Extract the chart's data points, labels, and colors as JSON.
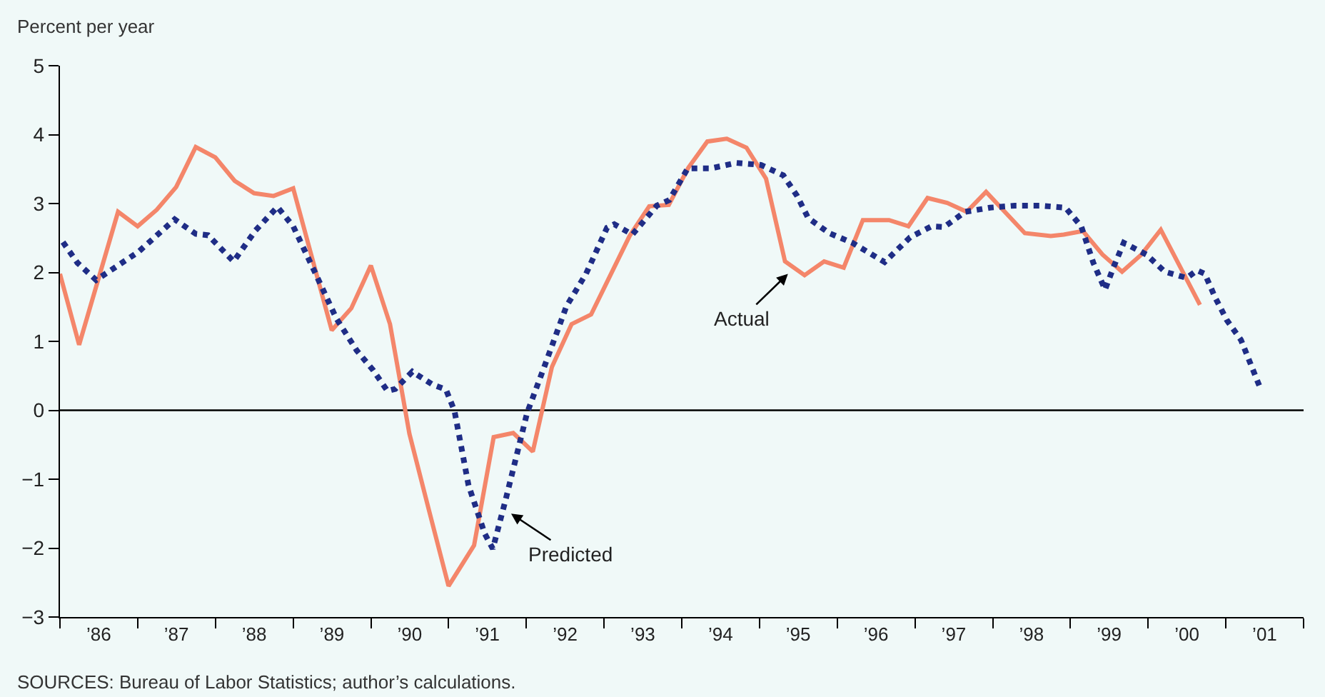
{
  "chart_data": {
    "type": "line",
    "ylabel": "Percent per year",
    "xlim": [
      "1986-01-01",
      "2002-01-01"
    ],
    "xticks": [
      {
        "value": "1986-01-01",
        "label": null
      },
      {
        "value": "1986-07-02",
        "label": "’86"
      },
      {
        "value": "1987-01-01",
        "label": null
      },
      {
        "value": "1987-07-02",
        "label": "’87"
      },
      {
        "value": "1988-01-01",
        "label": null
      },
      {
        "value": "1988-07-02",
        "label": "’88"
      },
      {
        "value": "1989-01-01",
        "label": null
      },
      {
        "value": "1989-07-02",
        "label": "’89"
      },
      {
        "value": "1990-01-01",
        "label": null
      },
      {
        "value": "1990-07-02",
        "label": "’90"
      },
      {
        "value": "1991-01-01",
        "label": null
      },
      {
        "value": "1991-07-02",
        "label": "’91"
      },
      {
        "value": "1992-01-01",
        "label": null
      },
      {
        "value": "1992-07-02",
        "label": "’92"
      },
      {
        "value": "1993-01-01",
        "label": null
      },
      {
        "value": "1993-07-02",
        "label": "’93"
      },
      {
        "value": "1994-01-01",
        "label": null
      },
      {
        "value": "1994-07-02",
        "label": "’94"
      },
      {
        "value": "1995-01-01",
        "label": null
      },
      {
        "value": "1995-07-02",
        "label": "’95"
      },
      {
        "value": "1996-01-01",
        "label": null
      },
      {
        "value": "1996-07-02",
        "label": "’96"
      },
      {
        "value": "1997-01-01",
        "label": null
      },
      {
        "value": "1997-07-02",
        "label": "’97"
      },
      {
        "value": "1998-01-01",
        "label": null
      },
      {
        "value": "1998-07-02",
        "label": "’98"
      },
      {
        "value": "1999-01-01",
        "label": null
      },
      {
        "value": "1999-07-02",
        "label": "’99"
      },
      {
        "value": "2000-01-01",
        "label": null
      },
      {
        "value": "2000-07-02",
        "label": "’00"
      },
      {
        "value": "2001-01-01",
        "label": null
      },
      {
        "value": "2001-07-02",
        "label": "’01"
      },
      {
        "value": "2002-01-01",
        "label": null
      }
    ],
    "ylim": [
      -3,
      5
    ],
    "yticks": [
      {
        "value": -3,
        "label": "−3"
      },
      {
        "value": -2,
        "label": "−2"
      },
      {
        "value": -1,
        "label": "−1"
      },
      0,
      1,
      2,
      3,
      4,
      5
    ],
    "grid": false,
    "marker": "none",
    "ref_lines": [
      {
        "axis": "y",
        "value": 0,
        "color": "#000000",
        "line_style": "solid"
      }
    ],
    "annotations": [
      {
        "text": "Actual",
        "x": "1995-05-15",
        "y": 1.98
      },
      {
        "text": "Predicted",
        "x": "1991-10-22",
        "y": -1.5
      },
      "SOURCES: Bureau of Labor Statistics; author’s calculations."
    ],
    "series": [
      {
        "color": "#f4866a",
        "line_style": "solid",
        "x": [
          "1986-01",
          "1986-04",
          "1986-10",
          "1987-01",
          "1987-04",
          "1987-07",
          "1987-10",
          "1988-01",
          "1988-04",
          "1988-07",
          "1988-10",
          "1989-01",
          "1989-07",
          "1989-10",
          "1990-01",
          "1990-04",
          "1990-07",
          "1990-10",
          "1991-01",
          "1991-05",
          "1991-08",
          "1991-11",
          "1992-02",
          "1992-05",
          "1992-08",
          "1992-11",
          "1993-05",
          "1993-08",
          "1993-11",
          "1994-02",
          "1994-05",
          "1994-08",
          "1994-11",
          "1995-02",
          "1995-05",
          "1995-08",
          "1995-11",
          "1996-02",
          "1996-05",
          "1996-09",
          "1996-12",
          "1997-03",
          "1997-06",
          "1997-09",
          "1997-12",
          "1998-06",
          "1998-10",
          "1998-12",
          "1999-03",
          "1999-06",
          "1999-09",
          "1999-12",
          "2000-03",
          "2000-09"
        ],
        "values": [
          1.98,
          0.95,
          2.88,
          2.67,
          2.91,
          3.24,
          3.82,
          3.67,
          3.33,
          3.15,
          3.11,
          3.22,
          1.16,
          1.48,
          2.1,
          1.25,
          -0.34,
          -1.45,
          -2.55,
          -1.96,
          -0.39,
          -0.33,
          -0.6,
          0.63,
          1.25,
          1.39,
          2.53,
          2.96,
          2.98,
          3.52,
          3.9,
          3.94,
          3.81,
          3.36,
          2.16,
          1.96,
          2.16,
          2.07,
          2.76,
          2.76,
          2.67,
          3.08,
          3.01,
          2.88,
          3.17,
          2.57,
          2.53,
          2.55,
          2.6,
          2.26,
          2.01,
          2.26,
          2.62,
          1.53
        ]
      },
      {
        "color": "#1f2d86",
        "line_style": "dotted",
        "x": [
          "1986-01-15",
          "1986-03-24",
          "1986-06-20",
          "1987-01-05",
          "1987-06-24",
          "1987-10-01",
          "1987-11-28",
          "1988-03-27",
          "1988-07-08",
          "1988-10-19",
          "1989-01-01",
          "1989-04-12",
          "1989-07-23",
          "1989-10-26",
          "1990-01-12",
          "1990-03-20",
          "1990-04-26",
          "1990-07-15",
          "1990-10-19",
          "1990-12-20",
          "1991-01-29",
          "1991-04-05",
          "1991-06-20",
          "1991-07-28",
          "1991-09-27",
          "1992-01-05",
          "1992-03-27",
          "1992-07-08",
          "1992-10-08",
          "1993-01-15",
          "1993-02-18",
          "1993-05-14",
          "1993-09-06",
          "1993-11-03",
          "1994-01-29",
          "1994-05-18",
          "1994-09-13",
          "1995-01-08",
          "1995-04-23",
          "1995-06-27",
          "1995-08-18",
          "1995-11-25",
          "1996-03-13",
          "1996-08-11",
          "1996-12-09",
          "1997-03-20",
          "1997-05-18",
          "1997-08-25",
          "1997-12-20",
          "1998-04-15",
          "1998-08-11",
          "1998-12-09",
          "1999-02-21",
          "1999-04-19",
          "1999-06-13",
          "1999-07-26",
          "1999-09-09",
          "1999-12-24",
          "2000-03-20",
          "2000-07-01",
          "2000-08-18",
          "2000-09-24",
          "2000-11-11",
          "2001-01-05",
          "2001-03-13",
          "2001-04-26",
          "2001-06-09"
        ],
        "values": [
          2.44,
          2.14,
          1.89,
          2.3,
          2.77,
          2.56,
          2.54,
          2.16,
          2.61,
          2.95,
          2.67,
          2.01,
          1.33,
          0.87,
          0.58,
          0.28,
          0.31,
          0.56,
          0.37,
          0.3,
          -0.01,
          -1.09,
          -1.79,
          -2.01,
          -1.29,
          -0.04,
          0.64,
          1.51,
          1.98,
          2.65,
          2.7,
          2.55,
          2.97,
          3.05,
          3.51,
          3.51,
          3.59,
          3.56,
          3.41,
          3.11,
          2.79,
          2.57,
          2.43,
          2.15,
          2.51,
          2.67,
          2.66,
          2.88,
          2.94,
          2.97,
          2.97,
          2.94,
          2.67,
          2.14,
          1.75,
          2.1,
          2.43,
          2.26,
          2.01,
          1.92,
          2.03,
          1.98,
          1.64,
          1.31,
          1.02,
          0.68,
          0.34
        ]
      }
    ]
  }
}
